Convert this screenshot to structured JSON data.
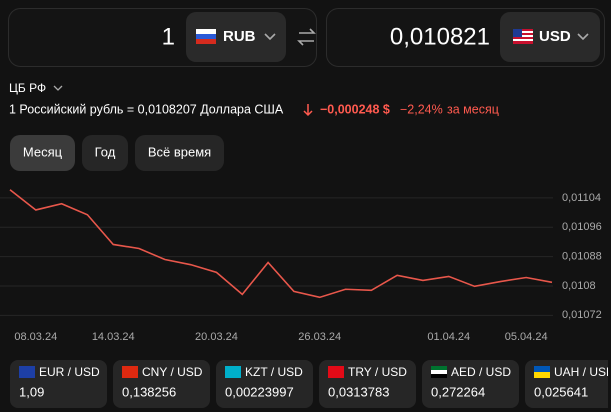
{
  "converter": {
    "from_amount": "1",
    "from_currency": "RUB",
    "to_amount": "0,010821",
    "to_currency": "USD"
  },
  "source": "ЦБ РФ",
  "rate_text": "1 Российский рубль = 0,0108207 Доллара США",
  "change": "−0,000248 $",
  "change_pct": "−2,24%",
  "period_text": "за месяц",
  "tabs": [
    "Месяц",
    "Год",
    "Всё время"
  ],
  "chart_data": {
    "type": "line",
    "categories": [
      null,
      "08.03.24",
      null,
      null,
      "14.03.24",
      null,
      null,
      null,
      "20.03.24",
      null,
      null,
      null,
      "26.03.24",
      null,
      null,
      null,
      null,
      "01.04.24",
      null,
      null,
      "05.04.24",
      null
    ],
    "values": [
      0.011062,
      0.011007,
      0.011024,
      0.010994,
      0.010913,
      0.010902,
      0.010872,
      0.010858,
      0.010837,
      0.010777,
      0.010864,
      0.010785,
      0.010769,
      0.010791,
      0.010788,
      0.010829,
      0.010815,
      0.010826,
      0.010799,
      0.010812,
      0.010823,
      0.01081
    ],
    "color": "#e8574b",
    "ylim": [
      0.01068,
      0.011075
    ],
    "yticks": [
      {
        "value": 0.01104,
        "label": "0,01104"
      },
      {
        "value": 0.01096,
        "label": "0,01096"
      },
      {
        "value": 0.01088,
        "label": "0,01088"
      },
      {
        "value": 0.0108,
        "label": "0,0108"
      },
      {
        "value": 0.01072,
        "label": "0,01072"
      }
    ],
    "grid": true
  },
  "pairs": [
    {
      "name": "EUR / USD",
      "value": "1,09"
    },
    {
      "name": "CNY / USD",
      "value": "0,138256"
    },
    {
      "name": "KZT / USD",
      "value": "0,00223997"
    },
    {
      "name": "TRY / USD",
      "value": "0,0313783"
    },
    {
      "name": "AED / USD",
      "value": "0,272264"
    },
    {
      "name": "UAH / USD",
      "value": "0,025641"
    }
  ]
}
